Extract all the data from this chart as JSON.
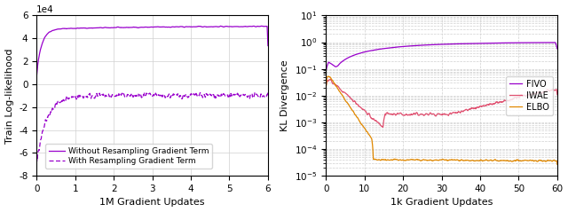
{
  "left": {
    "xlabel": "1M Gradient Updates",
    "ylabel": "Train Log-likelihood",
    "xlim": [
      0,
      6
    ],
    "ylim": [
      -80000.0,
      60000.0
    ],
    "ytick_vals": [
      -8,
      -6,
      -4,
      -2,
      0,
      2,
      4,
      6
    ],
    "xticks": [
      0,
      1,
      2,
      3,
      4,
      5,
      6
    ],
    "color": "#9900CC",
    "legend": [
      "Without Resampling Gradient Term",
      "With Resampling Gradient Term"
    ],
    "legend_loc": "lower center"
  },
  "right": {
    "xlabel": "1k Gradient Updates",
    "ylabel": "KL Divergence",
    "xlim": [
      0,
      60
    ],
    "xticks": [
      0,
      10,
      20,
      30,
      40,
      50,
      60
    ],
    "ylim": [
      1e-05,
      10
    ],
    "colors": {
      "FIVO": "#9900CC",
      "IWAE": "#e05070",
      "ELBO": "#e08800"
    },
    "legend": [
      "FIVO",
      "IWAE",
      "ELBO"
    ],
    "legend_loc": "center right"
  }
}
